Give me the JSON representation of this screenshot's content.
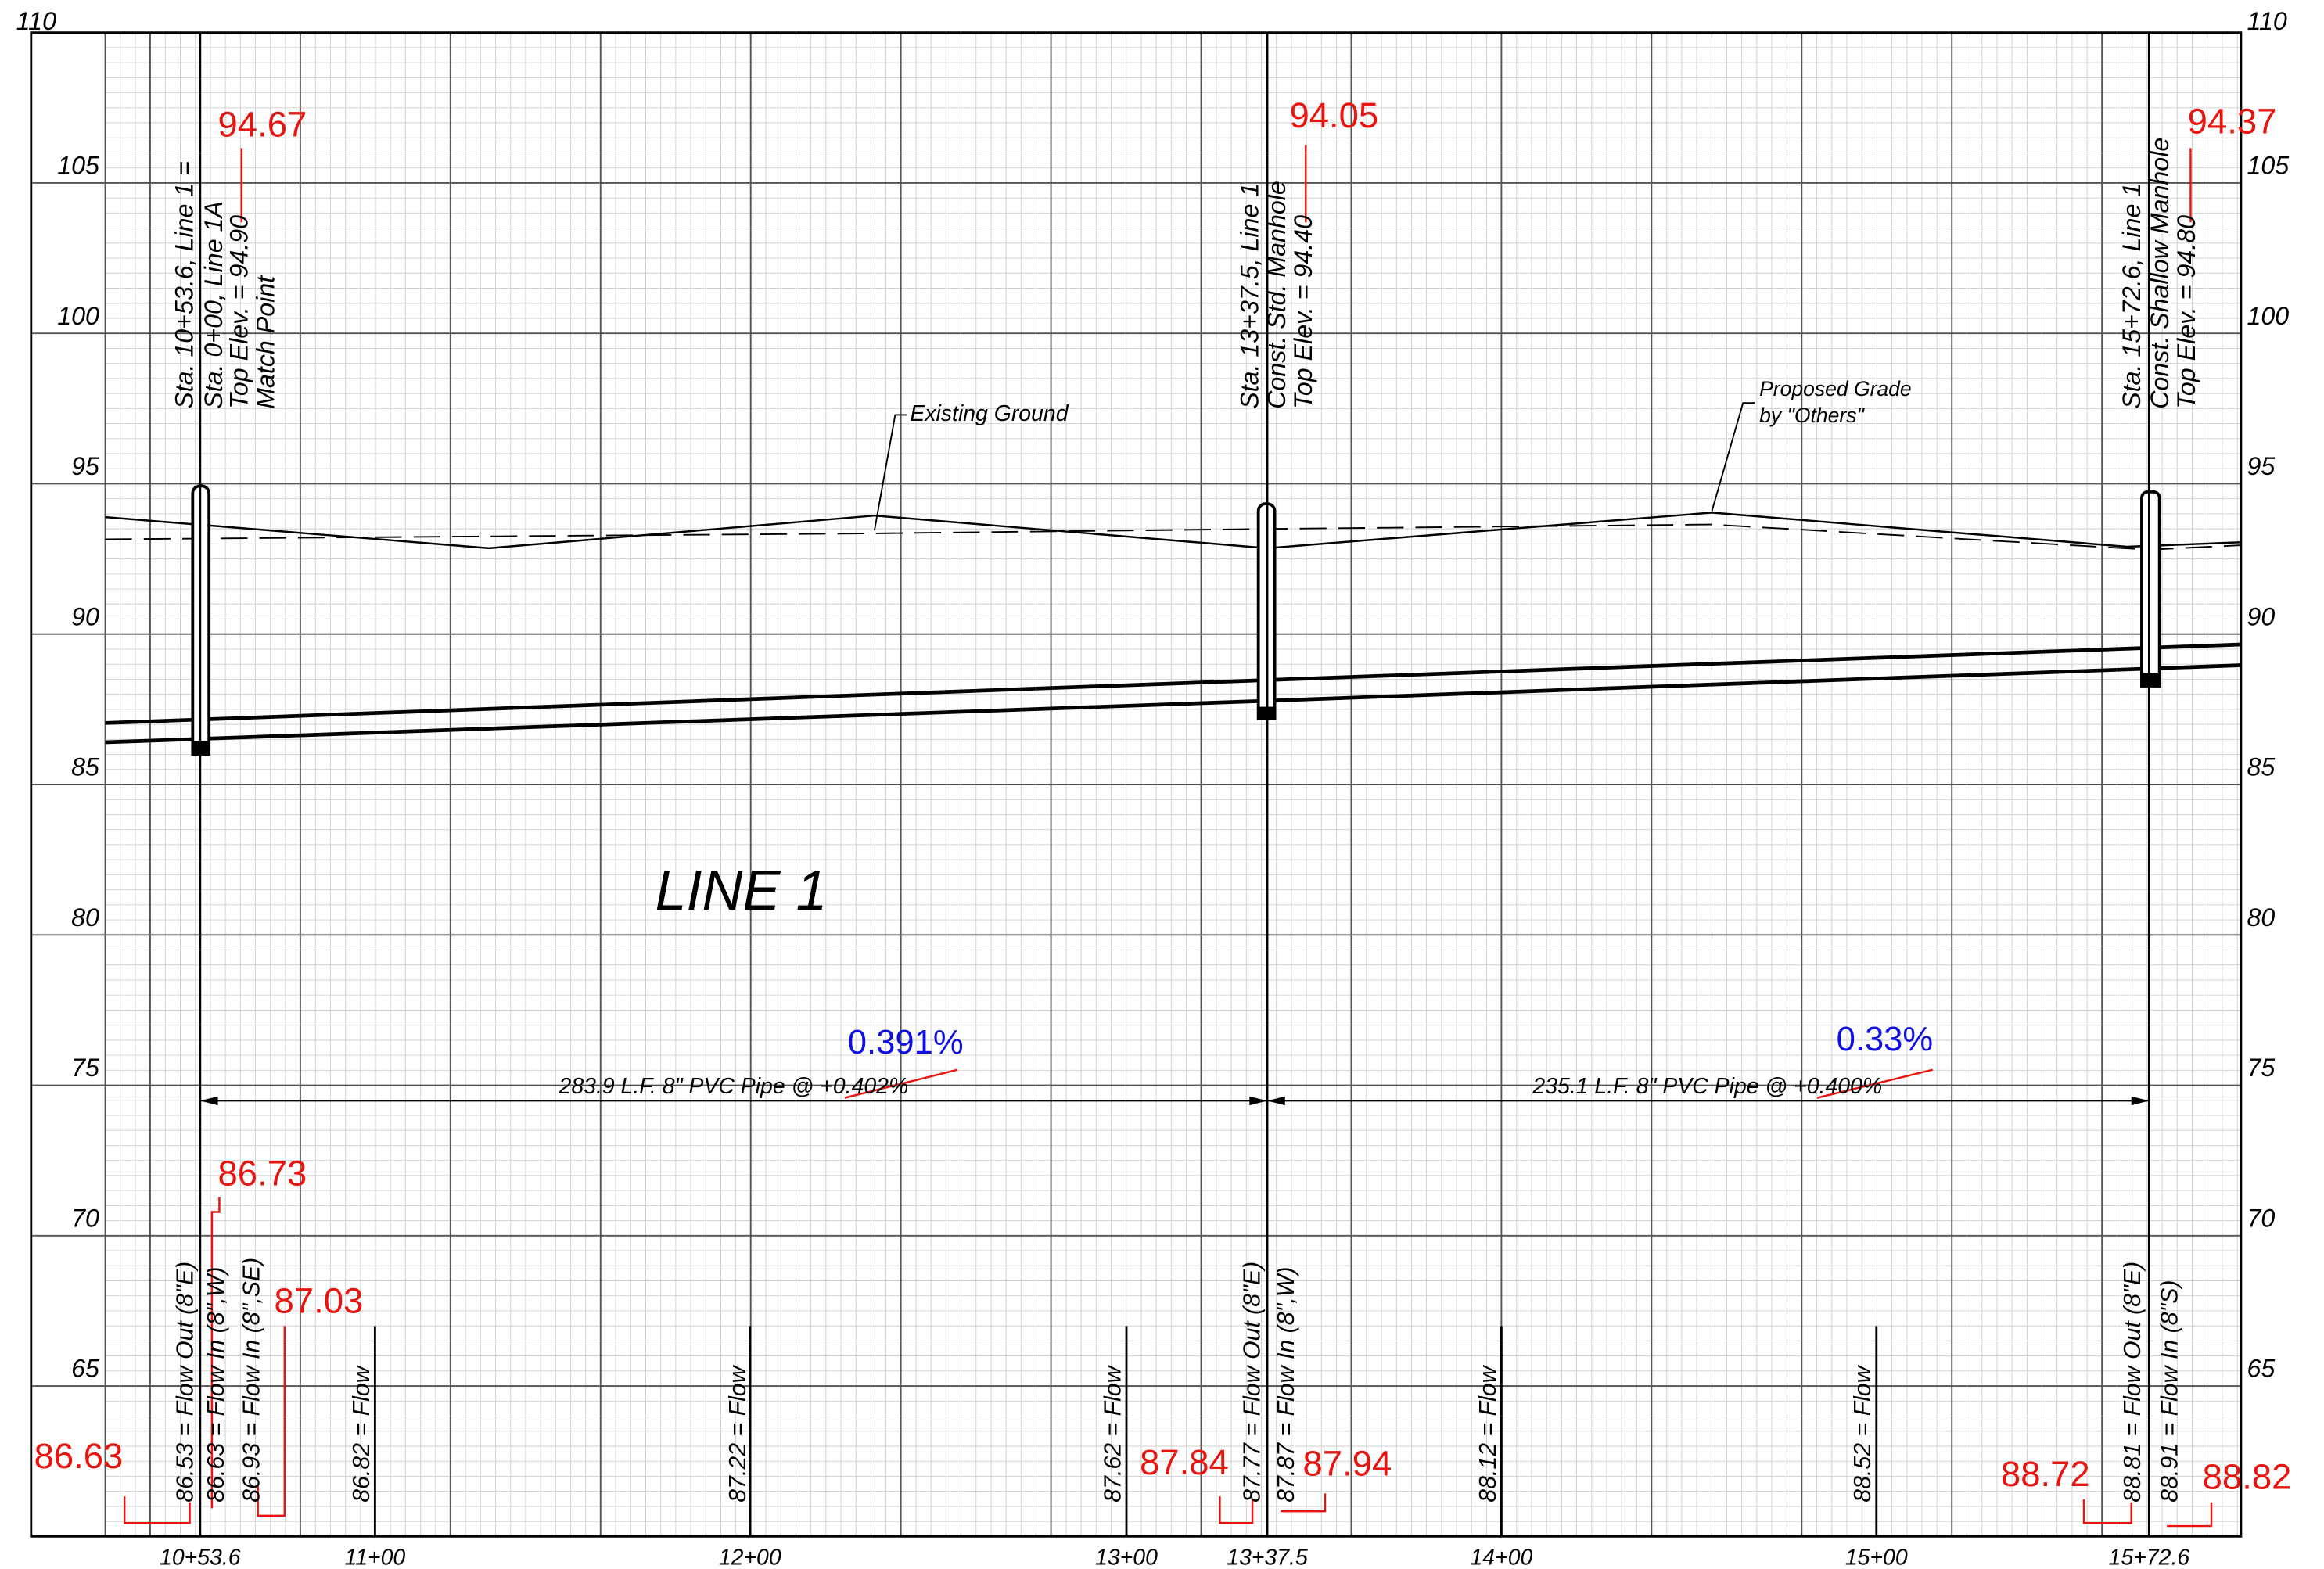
{
  "elevation_labels": [
    "110",
    "105",
    "100",
    "95",
    "90",
    "85",
    "80",
    "75",
    "70",
    "65"
  ],
  "stations": [
    "10+53.6",
    "11+00",
    "12+00",
    "13+00",
    "13+37.5",
    "14+00",
    "15+00",
    "15+72.6"
  ],
  "structures": [
    {
      "lines": [
        "Sta. 10+53.6, Line 1 =",
        "Sta. 0+00, Line 1A",
        "Top Elev. = 94.90",
        "Match Point"
      ],
      "revised_top": "94.67"
    },
    {
      "lines": [
        "Sta. 13+37.5, Line 1",
        "Const. Std. Manhole",
        "Top Elev. = 94.40"
      ],
      "revised_top": "94.05"
    },
    {
      "lines": [
        "Sta. 15+72.6, Line 1",
        "Const. Shallow Manhole",
        "Top Elev. = 94.80"
      ],
      "revised_top": "94.37"
    }
  ],
  "callouts": {
    "existing_ground": "Existing Ground",
    "proposed_grade": [
      "Proposed Grade",
      "by \"Others\""
    ]
  },
  "title": "LINE 1",
  "pipes": [
    {
      "label": "283.9 L.F. 8\" PVC Pipe @ +0.402%",
      "revised_slope": "0.391%"
    },
    {
      "label": "235.1 L.F. 8\" PVC Pipe @ +0.400%",
      "revised_slope": "0.33%"
    }
  ],
  "flow_labels": [
    "86.53 = Flow Out (8\"E)",
    "86.63 = Flow In (8\",W)",
    "86.93 = Flow In (8\",SE)",
    "86.82 = Flow",
    "87.22 = Flow",
    "87.62 = Flow",
    "87.77 = Flow Out (8\"E)",
    "87.87 = Flow In (8\",W)",
    "88.12 = Flow",
    "88.52 = Flow",
    "88.81 = Flow Out (8\"E)",
    "88.91 = Flow In (8\"S)"
  ],
  "revised_inverts": [
    "86.73",
    "87.03",
    "86.63",
    "87.84",
    "87.94",
    "88.72",
    "88.82"
  ]
}
